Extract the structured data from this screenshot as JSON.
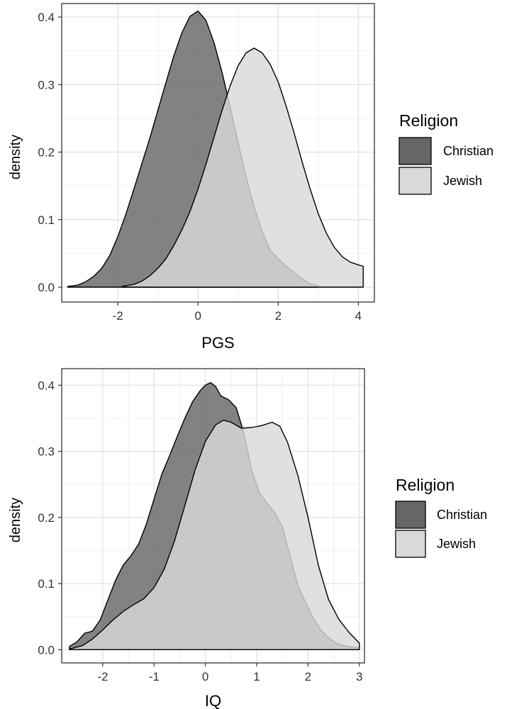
{
  "chart_data": [
    {
      "type": "area",
      "subtype": "density",
      "xlabel": "PGS",
      "ylabel": "density",
      "xlim": [
        -3.4,
        4.4
      ],
      "ylim": [
        -0.022,
        0.42
      ],
      "x_ticks": [
        -2,
        0,
        2,
        4
      ],
      "x_tick_labels": [
        "-2",
        "0",
        "2",
        "4"
      ],
      "y_ticks": [
        0.0,
        0.1,
        0.2,
        0.3,
        0.4
      ],
      "y_tick_labels": [
        "0.0",
        "0.1",
        "0.2",
        "0.3",
        "0.4"
      ],
      "grid": true,
      "legend": {
        "title": "Religion",
        "position": "right"
      },
      "series": [
        {
          "name": "Christian",
          "color": "#666666",
          "points": [
            [
              -3.25,
              0.001
            ],
            [
              -3.0,
              0.003
            ],
            [
              -2.8,
              0.008
            ],
            [
              -2.6,
              0.016
            ],
            [
              -2.4,
              0.028
            ],
            [
              -2.2,
              0.047
            ],
            [
              -2.0,
              0.075
            ],
            [
              -1.8,
              0.108
            ],
            [
              -1.6,
              0.145
            ],
            [
              -1.4,
              0.183
            ],
            [
              -1.2,
              0.221
            ],
            [
              -1.0,
              0.262
            ],
            [
              -0.8,
              0.303
            ],
            [
              -0.6,
              0.343
            ],
            [
              -0.4,
              0.377
            ],
            [
              -0.2,
              0.401
            ],
            [
              0.0,
              0.409
            ],
            [
              0.2,
              0.395
            ],
            [
              0.4,
              0.362
            ],
            [
              0.6,
              0.318
            ],
            [
              0.8,
              0.267
            ],
            [
              1.0,
              0.214
            ],
            [
              1.2,
              0.163
            ],
            [
              1.4,
              0.119
            ],
            [
              1.6,
              0.083
            ],
            [
              1.8,
              0.055
            ],
            [
              2.0,
              0.042
            ],
            [
              2.2,
              0.031
            ],
            [
              2.4,
              0.022
            ],
            [
              2.6,
              0.012
            ],
            [
              2.8,
              0.005
            ],
            [
              3.0,
              0.002
            ]
          ]
        },
        {
          "name": "Jewish",
          "color": "#d9d9d9",
          "points": [
            [
              -1.9,
              0.001
            ],
            [
              -1.6,
              0.004
            ],
            [
              -1.4,
              0.009
            ],
            [
              -1.2,
              0.017
            ],
            [
              -1.0,
              0.028
            ],
            [
              -0.8,
              0.042
            ],
            [
              -0.6,
              0.062
            ],
            [
              -0.4,
              0.085
            ],
            [
              -0.2,
              0.112
            ],
            [
              0.0,
              0.145
            ],
            [
              0.2,
              0.182
            ],
            [
              0.4,
              0.222
            ],
            [
              0.6,
              0.262
            ],
            [
              0.8,
              0.298
            ],
            [
              1.0,
              0.328
            ],
            [
              1.2,
              0.347
            ],
            [
              1.4,
              0.354
            ],
            [
              1.6,
              0.347
            ],
            [
              1.8,
              0.33
            ],
            [
              2.0,
              0.304
            ],
            [
              2.2,
              0.268
            ],
            [
              2.4,
              0.228
            ],
            [
              2.6,
              0.185
            ],
            [
              2.8,
              0.145
            ],
            [
              3.0,
              0.109
            ],
            [
              3.2,
              0.08
            ],
            [
              3.4,
              0.059
            ],
            [
              3.6,
              0.045
            ],
            [
              3.8,
              0.037
            ],
            [
              4.0,
              0.033
            ],
            [
              4.12,
              0.031
            ]
          ]
        }
      ]
    },
    {
      "type": "area",
      "subtype": "density",
      "xlabel": "IQ",
      "ylabel": "density",
      "xlim": [
        -2.8,
        3.1
      ],
      "ylim": [
        -0.02,
        0.425
      ],
      "x_ticks": [
        -2,
        -1,
        0,
        1,
        2,
        3
      ],
      "x_tick_labels": [
        "-2",
        "-1",
        "0",
        "1",
        "2",
        "3"
      ],
      "y_ticks": [
        0.0,
        0.1,
        0.2,
        0.3,
        0.4
      ],
      "y_tick_labels": [
        "0.0",
        "0.1",
        "0.2",
        "0.3",
        "0.4"
      ],
      "grid": true,
      "legend": {
        "title": "Religion",
        "position": "right"
      },
      "series": [
        {
          "name": "Christian",
          "color": "#666666",
          "points": [
            [
              -2.65,
              0.005
            ],
            [
              -2.5,
              0.012
            ],
            [
              -2.35,
              0.025
            ],
            [
              -2.2,
              0.028
            ],
            [
              -2.05,
              0.045
            ],
            [
              -1.9,
              0.075
            ],
            [
              -1.75,
              0.105
            ],
            [
              -1.6,
              0.128
            ],
            [
              -1.45,
              0.142
            ],
            [
              -1.3,
              0.16
            ],
            [
              -1.15,
              0.19
            ],
            [
              -1.0,
              0.228
            ],
            [
              -0.85,
              0.265
            ],
            [
              -0.7,
              0.293
            ],
            [
              -0.55,
              0.322
            ],
            [
              -0.4,
              0.35
            ],
            [
              -0.25,
              0.375
            ],
            [
              -0.1,
              0.392
            ],
            [
              0.0,
              0.4
            ],
            [
              0.1,
              0.404
            ],
            [
              0.2,
              0.398
            ],
            [
              0.3,
              0.384
            ],
            [
              0.45,
              0.378
            ],
            [
              0.6,
              0.366
            ],
            [
              0.75,
              0.328
            ],
            [
              0.9,
              0.272
            ],
            [
              1.05,
              0.238
            ],
            [
              1.2,
              0.222
            ],
            [
              1.35,
              0.208
            ],
            [
              1.5,
              0.186
            ],
            [
              1.65,
              0.142
            ],
            [
              1.8,
              0.098
            ],
            [
              1.95,
              0.072
            ],
            [
              2.1,
              0.048
            ],
            [
              2.25,
              0.03
            ],
            [
              2.4,
              0.018
            ],
            [
              2.55,
              0.01
            ],
            [
              2.7,
              0.006
            ],
            [
              2.85,
              0.004
            ],
            [
              3.0,
              0.003
            ]
          ]
        },
        {
          "name": "Jewish",
          "color": "#d9d9d9",
          "points": [
            [
              -2.65,
              0.001
            ],
            [
              -2.4,
              0.006
            ],
            [
              -2.2,
              0.016
            ],
            [
              -2.0,
              0.03
            ],
            [
              -1.8,
              0.045
            ],
            [
              -1.6,
              0.058
            ],
            [
              -1.4,
              0.068
            ],
            [
              -1.2,
              0.077
            ],
            [
              -1.0,
              0.094
            ],
            [
              -0.8,
              0.122
            ],
            [
              -0.6,
              0.165
            ],
            [
              -0.4,
              0.218
            ],
            [
              -0.2,
              0.272
            ],
            [
              0.0,
              0.315
            ],
            [
              0.2,
              0.34
            ],
            [
              0.35,
              0.347
            ],
            [
              0.5,
              0.344
            ],
            [
              0.7,
              0.335
            ],
            [
              0.9,
              0.336
            ],
            [
              1.1,
              0.339
            ],
            [
              1.3,
              0.344
            ],
            [
              1.45,
              0.338
            ],
            [
              1.6,
              0.314
            ],
            [
              1.8,
              0.264
            ],
            [
              2.0,
              0.2
            ],
            [
              2.2,
              0.128
            ],
            [
              2.4,
              0.076
            ],
            [
              2.6,
              0.046
            ],
            [
              2.8,
              0.026
            ],
            [
              3.0,
              0.01
            ]
          ]
        }
      ]
    }
  ]
}
